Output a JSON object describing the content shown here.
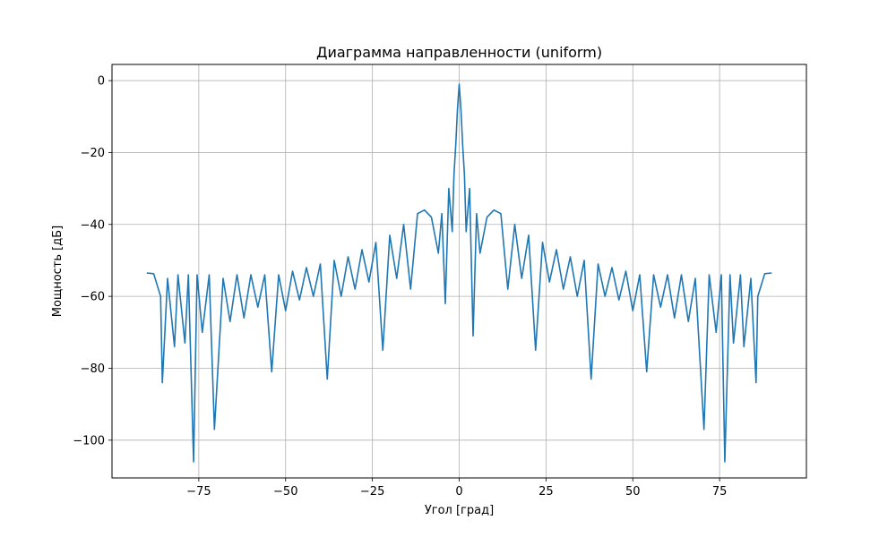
{
  "chart_data": {
    "type": "line",
    "title": "Диаграмма направленности (uniform)",
    "xlabel": "Угол [град]",
    "ylabel": "Мощность [дБ]",
    "xlim": [
      -100,
      100
    ],
    "ylim": [
      -110.5,
      4.5
    ],
    "xticks": [
      -75,
      -50,
      -25,
      0,
      25,
      50,
      75
    ],
    "xtick_labels": [
      "−75",
      "−50",
      "−25",
      "0",
      "25",
      "50",
      "75"
    ],
    "yticks": [
      0,
      -20,
      -40,
      -60,
      -80,
      -100
    ],
    "ytick_labels": [
      "0",
      "−20",
      "−40",
      "−60",
      "−80",
      "−100"
    ],
    "grid": true,
    "legend": "none",
    "series": [
      {
        "color": "#1f77b4",
        "x": [
          -90,
          -88,
          -86,
          -85.5,
          -84,
          -82,
          -81,
          -79,
          -78,
          -76.5,
          -75.5,
          -74,
          -72,
          -70.5,
          -68,
          -66,
          -64,
          -62,
          -60,
          -58,
          -56,
          -54,
          -52,
          -50,
          -48,
          -46,
          -44,
          -42,
          -40,
          -38,
          -36,
          -34,
          -32,
          -30,
          -28,
          -26,
          -24,
          -22,
          -20,
          -18,
          -16,
          -14,
          -12,
          -10,
          -8,
          -6,
          -5,
          -4,
          -3,
          -2,
          -1.5,
          -1,
          -0.5,
          0,
          0.5,
          1,
          1.5,
          2,
          3,
          4,
          5,
          6,
          8,
          10,
          12,
          14,
          16,
          18,
          20,
          22,
          24,
          26,
          28,
          30,
          32,
          34,
          36,
          38,
          40,
          42,
          44,
          46,
          48,
          50,
          52,
          54,
          56,
          58,
          60,
          62,
          64,
          66,
          68,
          70.5,
          72,
          74,
          75.5,
          76.5,
          78,
          79,
          81,
          82,
          84,
          85.5,
          86,
          88,
          90
        ],
        "y": [
          -53.5,
          -53.7,
          -60,
          -84,
          -55,
          -74,
          -54,
          -73,
          -54,
          -106,
          -54,
          -70,
          -54,
          -97,
          -55,
          -67,
          -54,
          -66,
          -54,
          -63,
          -54,
          -81,
          -54,
          -64,
          -53,
          -61,
          -52,
          -60,
          -51,
          -83,
          -50,
          -60,
          -49,
          -58,
          -47,
          -56,
          -45,
          -75,
          -43,
          -55,
          -40,
          -58,
          -37,
          -36,
          -38,
          -48,
          -37,
          -62,
          -30,
          -42,
          -26,
          -18,
          -8,
          -1,
          -8,
          -18,
          -26,
          -42,
          -30,
          -71,
          -37,
          -48,
          -38,
          -36,
          -37,
          -58,
          -40,
          -55,
          -43,
          -75,
          -45,
          -56,
          -47,
          -58,
          -49,
          -60,
          -50,
          -83,
          -51,
          -60,
          -52,
          -61,
          -53,
          -64,
          -54,
          -81,
          -54,
          -63,
          -54,
          -66,
          -54,
          -67,
          -55,
          -97,
          -54,
          -70,
          -54,
          -106,
          -54,
          -73,
          -54,
          -74,
          -55,
          -84,
          -60,
          -53.7,
          -53.5
        ]
      }
    ]
  }
}
